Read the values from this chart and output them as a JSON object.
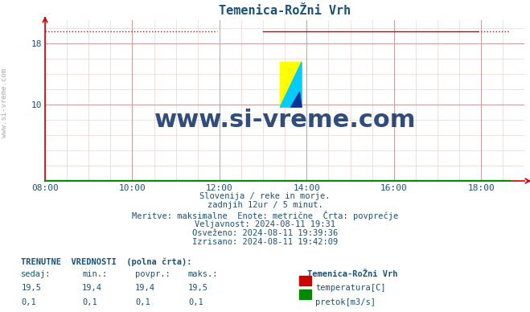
{
  "title": "Temenica-RoŽni Vrh",
  "title_color": "#1a5276",
  "bg_color": "#ffffff",
  "plot_bg_color": "#ffffff",
  "grid_color_major": "#cc9999",
  "grid_color_minor": "#e8c8c8",
  "x_ticks": [
    "08:00",
    "10:00",
    "12:00",
    "14:00",
    "16:00",
    "18:00"
  ],
  "x_ticks_pos": [
    0,
    120,
    240,
    360,
    480,
    600
  ],
  "x_min": 0,
  "x_max": 660,
  "y_min": 0,
  "y_max": 21,
  "y_ticks": [
    10,
    18
  ],
  "temp_value": 19.5,
  "flow_value": 0.1,
  "temp_color": "#cc0000",
  "flow_color": "#008800",
  "text_color": "#1a5276",
  "watermark_text": "www.si-vreme.com",
  "watermark_color": "#1a3a6e",
  "info_lines": [
    "Slovenija / reke in morje.",
    "zadnjih 12ur / 5 minut.",
    "Meritve: maksimalne  Enote: metrične  Črta: povprečje",
    "Veljavnost: 2024-08-11 19:31",
    "Osveženo: 2024-08-11 19:39:36",
    "Izrisano: 2024-08-11 19:42:09"
  ],
  "table_header": "TRENUTNE  VREDNOSTI  (polna črta):",
  "table_cols": [
    "sedaj:",
    "min.:",
    "povpr.:",
    "maks.:"
  ],
  "table_row1": [
    "19,5",
    "19,4",
    "19,4",
    "19,5"
  ],
  "table_row2": [
    "0,1",
    "0,1",
    "0,1",
    "0,1"
  ],
  "station_name": "Temenica-RoŽni Vrh",
  "legend_temp": "temperatura[C]",
  "legend_flow": "pretok[m3/s]",
  "ylabel_text": "www.si-vreme.com",
  "gap_start_x": 237,
  "gap_end_x": 300,
  "late_data_start": 595
}
